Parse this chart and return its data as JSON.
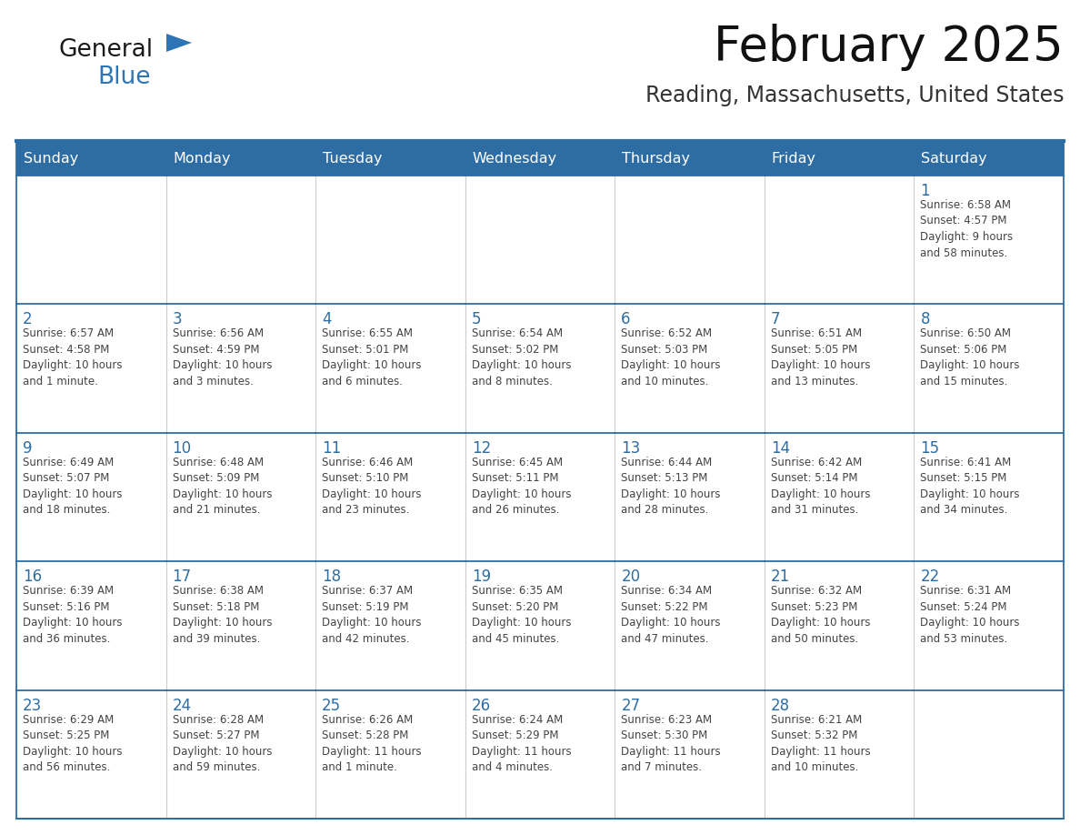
{
  "title": "February 2025",
  "subtitle": "Reading, Massachusetts, United States",
  "header_color": "#2E6DA4",
  "header_text_color": "#FFFFFF",
  "cell_bg_color": "#FFFFFF",
  "cell_bg_alt": "#F0F4F8",
  "cell_border_color": "#2E6DA4",
  "day_number_color": "#2E6DA4",
  "cell_text_color": "#444444",
  "days_of_week": [
    "Sunday",
    "Monday",
    "Tuesday",
    "Wednesday",
    "Thursday",
    "Friday",
    "Saturday"
  ],
  "weeks": [
    [
      {
        "day": "",
        "text": ""
      },
      {
        "day": "",
        "text": ""
      },
      {
        "day": "",
        "text": ""
      },
      {
        "day": "",
        "text": ""
      },
      {
        "day": "",
        "text": ""
      },
      {
        "day": "",
        "text": ""
      },
      {
        "day": "1",
        "text": "Sunrise: 6:58 AM\nSunset: 4:57 PM\nDaylight: 9 hours\nand 58 minutes."
      }
    ],
    [
      {
        "day": "2",
        "text": "Sunrise: 6:57 AM\nSunset: 4:58 PM\nDaylight: 10 hours\nand 1 minute."
      },
      {
        "day": "3",
        "text": "Sunrise: 6:56 AM\nSunset: 4:59 PM\nDaylight: 10 hours\nand 3 minutes."
      },
      {
        "day": "4",
        "text": "Sunrise: 6:55 AM\nSunset: 5:01 PM\nDaylight: 10 hours\nand 6 minutes."
      },
      {
        "day": "5",
        "text": "Sunrise: 6:54 AM\nSunset: 5:02 PM\nDaylight: 10 hours\nand 8 minutes."
      },
      {
        "day": "6",
        "text": "Sunrise: 6:52 AM\nSunset: 5:03 PM\nDaylight: 10 hours\nand 10 minutes."
      },
      {
        "day": "7",
        "text": "Sunrise: 6:51 AM\nSunset: 5:05 PM\nDaylight: 10 hours\nand 13 minutes."
      },
      {
        "day": "8",
        "text": "Sunrise: 6:50 AM\nSunset: 5:06 PM\nDaylight: 10 hours\nand 15 minutes."
      }
    ],
    [
      {
        "day": "9",
        "text": "Sunrise: 6:49 AM\nSunset: 5:07 PM\nDaylight: 10 hours\nand 18 minutes."
      },
      {
        "day": "10",
        "text": "Sunrise: 6:48 AM\nSunset: 5:09 PM\nDaylight: 10 hours\nand 21 minutes."
      },
      {
        "day": "11",
        "text": "Sunrise: 6:46 AM\nSunset: 5:10 PM\nDaylight: 10 hours\nand 23 minutes."
      },
      {
        "day": "12",
        "text": "Sunrise: 6:45 AM\nSunset: 5:11 PM\nDaylight: 10 hours\nand 26 minutes."
      },
      {
        "day": "13",
        "text": "Sunrise: 6:44 AM\nSunset: 5:13 PM\nDaylight: 10 hours\nand 28 minutes."
      },
      {
        "day": "14",
        "text": "Sunrise: 6:42 AM\nSunset: 5:14 PM\nDaylight: 10 hours\nand 31 minutes."
      },
      {
        "day": "15",
        "text": "Sunrise: 6:41 AM\nSunset: 5:15 PM\nDaylight: 10 hours\nand 34 minutes."
      }
    ],
    [
      {
        "day": "16",
        "text": "Sunrise: 6:39 AM\nSunset: 5:16 PM\nDaylight: 10 hours\nand 36 minutes."
      },
      {
        "day": "17",
        "text": "Sunrise: 6:38 AM\nSunset: 5:18 PM\nDaylight: 10 hours\nand 39 minutes."
      },
      {
        "day": "18",
        "text": "Sunrise: 6:37 AM\nSunset: 5:19 PM\nDaylight: 10 hours\nand 42 minutes."
      },
      {
        "day": "19",
        "text": "Sunrise: 6:35 AM\nSunset: 5:20 PM\nDaylight: 10 hours\nand 45 minutes."
      },
      {
        "day": "20",
        "text": "Sunrise: 6:34 AM\nSunset: 5:22 PM\nDaylight: 10 hours\nand 47 minutes."
      },
      {
        "day": "21",
        "text": "Sunrise: 6:32 AM\nSunset: 5:23 PM\nDaylight: 10 hours\nand 50 minutes."
      },
      {
        "day": "22",
        "text": "Sunrise: 6:31 AM\nSunset: 5:24 PM\nDaylight: 10 hours\nand 53 minutes."
      }
    ],
    [
      {
        "day": "23",
        "text": "Sunrise: 6:29 AM\nSunset: 5:25 PM\nDaylight: 10 hours\nand 56 minutes."
      },
      {
        "day": "24",
        "text": "Sunrise: 6:28 AM\nSunset: 5:27 PM\nDaylight: 10 hours\nand 59 minutes."
      },
      {
        "day": "25",
        "text": "Sunrise: 6:26 AM\nSunset: 5:28 PM\nDaylight: 11 hours\nand 1 minute."
      },
      {
        "day": "26",
        "text": "Sunrise: 6:24 AM\nSunset: 5:29 PM\nDaylight: 11 hours\nand 4 minutes."
      },
      {
        "day": "27",
        "text": "Sunrise: 6:23 AM\nSunset: 5:30 PM\nDaylight: 11 hours\nand 7 minutes."
      },
      {
        "day": "28",
        "text": "Sunrise: 6:21 AM\nSunset: 5:32 PM\nDaylight: 11 hours\nand 10 minutes."
      },
      {
        "day": "",
        "text": ""
      }
    ]
  ],
  "logo_text_general": "General",
  "logo_text_blue": "Blue",
  "logo_color_general": "#1a1a1a",
  "logo_color_blue": "#2E75B6",
  "logo_triangle_color": "#2E75B6",
  "fig_width": 11.88,
  "fig_height": 9.18,
  "dpi": 100
}
